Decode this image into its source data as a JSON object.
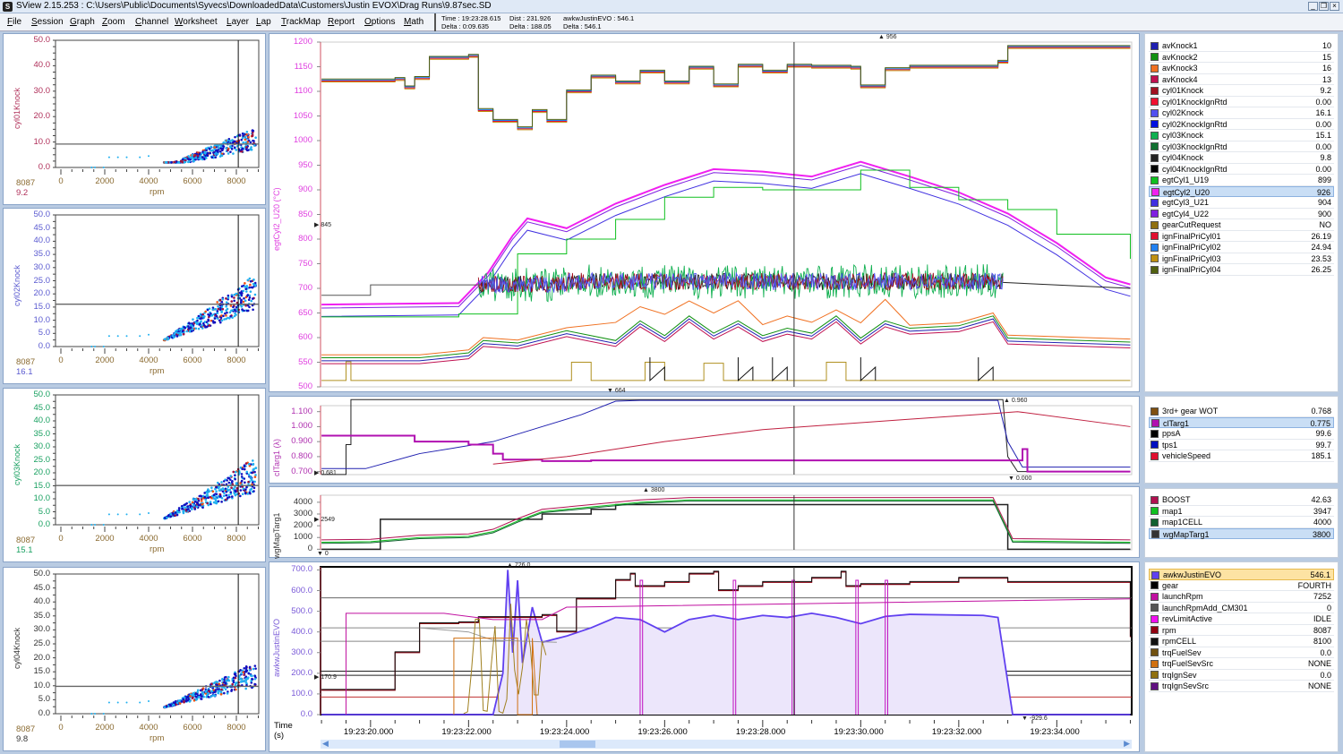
{
  "app": {
    "title": "SView 2.15.253  :  C:\\Users\\Public\\Documents\\Syvecs\\DownloadedData\\Customers\\Justin EVOX\\Drag Runs\\9.87sec.SD",
    "icon": "S"
  },
  "menu": [
    "File",
    "Session",
    "Graph",
    "Zoom",
    "Channel",
    "Worksheet",
    "Layer",
    "Lap",
    "TrackMap",
    "Report",
    "Options",
    "Math"
  ],
  "status": {
    "time": "Time : 19:23:28.615",
    "time_delta": "Delta : 0:09.635",
    "dist": "Dist : 231.926",
    "dist_delta": "Delta : 188.05",
    "chan": "awkwJustinEVO : 546.1",
    "chan_delta": "Delta : 546.1"
  },
  "scatter": [
    {
      "ylabel": "cyl01Knock",
      "ycolor": "#b0305a",
      "yticks": [
        "50.0",
        "40.0",
        "30.0",
        "20.0",
        "10.0",
        "0.0"
      ],
      "xticks": [
        "0",
        "2000",
        "4000",
        "6000",
        "8000"
      ],
      "xlabel": "rpm",
      "rx": "8087",
      "ry": "9.2",
      "cur": 9.2
    },
    {
      "ylabel": "cyl02Knock",
      "ycolor": "#5a5ad0",
      "yticks": [
        "50.0",
        "45.0",
        "40.0",
        "35.0",
        "30.0",
        "25.0",
        "20.0",
        "15.0",
        "10.0",
        "5.0",
        "0.0"
      ],
      "xticks": [
        "0",
        "2000",
        "4000",
        "6000",
        "8000"
      ],
      "xlabel": "rpm",
      "rx": "8087",
      "ry": "16.1",
      "cur": 16.1
    },
    {
      "ylabel": "cyl03Knock",
      "ycolor": "#18a060",
      "yticks": [
        "50.0",
        "45.0",
        "40.0",
        "35.0",
        "30.0",
        "25.0",
        "20.0",
        "15.0",
        "10.0",
        "5.0",
        "0.0"
      ],
      "xticks": [
        "0",
        "2000",
        "4000",
        "6000",
        "8000"
      ],
      "xlabel": "rpm",
      "rx": "8087",
      "ry": "15.1",
      "cur": 15.1
    },
    {
      "ylabel": "cyl04Knock",
      "ycolor": "#333333",
      "yticks": [
        "50.0",
        "45.0",
        "40.0",
        "35.0",
        "30.0",
        "25.0",
        "20.0",
        "15.0",
        "10.0",
        "5.0",
        "0.0"
      ],
      "xticks": [
        "0",
        "2000",
        "4000",
        "6000",
        "8000"
      ],
      "xlabel": "rpm",
      "rx": "8087",
      "ry": "9.8",
      "cur": 9.8
    }
  ],
  "charts": [
    {
      "ylabel": "egtCyl2_U20 (°C)",
      "ycolor": "#e040e0",
      "yticks": [
        "1200",
        "1150",
        "1100",
        "1050",
        "1000",
        "950",
        "900",
        "850",
        "800",
        "750",
        "700",
        "650",
        "600",
        "550",
        "500"
      ],
      "top_marker": "956",
      "left_marker": "845",
      "bottom_marker": "664"
    },
    {
      "ylabel": "clTarg1 (λ)",
      "ycolor": "#b030b0",
      "yticks": [
        "1.100",
        "1.000",
        "0.900",
        "0.800",
        "0.700"
      ],
      "top_marker": "0.960",
      "left_marker": "0.681",
      "bottom_marker": "0.000"
    },
    {
      "ylabel": "wgMapTarg1",
      "ycolor": "#333333",
      "yticks": [
        "4000",
        "3000",
        "2000",
        "1000",
        "0"
      ],
      "top_marker": "3800",
      "left_marker": "2549",
      "bottom_marker": "0"
    },
    {
      "ylabel": "awkwJustinEVO",
      "ycolor": "#7a5ad8",
      "yticks": [
        "700.0",
        "600.0",
        "500.0",
        "400.0",
        "300.0",
        "200.0",
        "100.0",
        "0.0"
      ],
      "top_marker": "726.0",
      "left_marker": "170.9",
      "bottom_marker": "-929.6"
    }
  ],
  "time_axis": {
    "label": "Time\n(s)",
    "label1": "Time",
    "label2": "(s)",
    "ticks": [
      "19:23:20.000",
      "19:23:22.000",
      "19:23:24.000",
      "19:23:26.000",
      "19:23:28.000",
      "19:23:30.000",
      "19:23:32.000",
      "19:23:34.000"
    ]
  },
  "legends": [
    [
      {
        "n": "avKnock1",
        "v": "10",
        "c": "#2020b0"
      },
      {
        "n": "avKnock2",
        "v": "15",
        "c": "#109010"
      },
      {
        "n": "avKnock3",
        "v": "16",
        "c": "#f07020"
      },
      {
        "n": "avKnock4",
        "v": "13",
        "c": "#c01050"
      },
      {
        "n": "cyl01Knock",
        "v": "9.2",
        "c": "#a01020"
      },
      {
        "n": "cyl01KnockIgnRtd",
        "v": "0.00",
        "c": "#f01030"
      },
      {
        "n": "cyl02Knock",
        "v": "16.1",
        "c": "#5050f0"
      },
      {
        "n": "cyl02KnockIgnRtd",
        "v": "0.00",
        "c": "#0010e0"
      },
      {
        "n": "cyl03Knock",
        "v": "15.1",
        "c": "#10b050"
      },
      {
        "n": "cyl03KnockIgnRtd",
        "v": "0.00",
        "c": "#107030"
      },
      {
        "n": "cyl04Knock",
        "v": "9.8",
        "c": "#222222"
      },
      {
        "n": "cyl04KnockIgnRtd",
        "v": "0.00",
        "c": "#000000"
      },
      {
        "n": "egtCyl1_U19",
        "v": "899",
        "c": "#10c020"
      },
      {
        "n": "egtCyl2_U20",
        "v": "926",
        "c": "#f020f0",
        "sel": true
      },
      {
        "n": "egtCyl3_U21",
        "v": "904",
        "c": "#4030e0"
      },
      {
        "n": "egtCyl4_U22",
        "v": "900",
        "c": "#8020e0"
      },
      {
        "n": "gearCutRequest",
        "v": "NO",
        "c": "#907010"
      },
      {
        "n": "ignFinalPriCyl01",
        "v": "26.19",
        "c": "#e01030"
      },
      {
        "n": "ignFinalPriCyl02",
        "v": "24.94",
        "c": "#2080f0"
      },
      {
        "n": "ignFinalPriCyl03",
        "v": "23.53",
        "c": "#c09010"
      },
      {
        "n": "ignFinalPriCyl04",
        "v": "26.25",
        "c": "#506010"
      }
    ],
    [
      {
        "n": "3rd+ gear WOT",
        "v": "0.768",
        "c": "#805010"
      },
      {
        "n": "clTarg1",
        "v": "0.775",
        "c": "#b010b0",
        "sel": true
      },
      {
        "n": "ppsA",
        "v": "99.6",
        "c": "#000000"
      },
      {
        "n": "tps1",
        "v": "99.7",
        "c": "#0010c0"
      },
      {
        "n": "vehicleSpeed",
        "v": "185.1",
        "c": "#e01030"
      }
    ],
    [
      {
        "n": "BOOST",
        "v": "42.63",
        "c": "#b01050"
      },
      {
        "n": "map1",
        "v": "3947",
        "c": "#10c020"
      },
      {
        "n": "map1CELL",
        "v": "4000",
        "c": "#106030"
      },
      {
        "n": "wgMapTarg1",
        "v": "3800",
        "c": "#333333",
        "sel": true
      }
    ],
    [
      {
        "n": "awkwJustinEVO",
        "v": "546.1",
        "c": "#6040f0",
        "hl": true
      },
      {
        "n": "gear",
        "v": "FOURTH",
        "c": "#000000"
      },
      {
        "n": "launchRpm",
        "v": "7252",
        "c": "#c010a0"
      },
      {
        "n": "launchRpmAdd_CM301",
        "v": "0",
        "c": "#555555"
      },
      {
        "n": "revLimitActive",
        "v": "IDLE",
        "c": "#f010f0"
      },
      {
        "n": "rpm",
        "v": "8087",
        "c": "#900010"
      },
      {
        "n": "rpmCELL",
        "v": "8100",
        "c": "#111111"
      },
      {
        "n": "trqFuelSev",
        "v": "0.0",
        "c": "#705010"
      },
      {
        "n": "trqFuelSevSrc",
        "v": "NONE",
        "c": "#d07010"
      },
      {
        "n": "trqIgnSev",
        "v": "0.0",
        "c": "#907010"
      },
      {
        "n": "trqIgnSevSrc",
        "v": "NONE",
        "c": "#601080"
      }
    ]
  ]
}
